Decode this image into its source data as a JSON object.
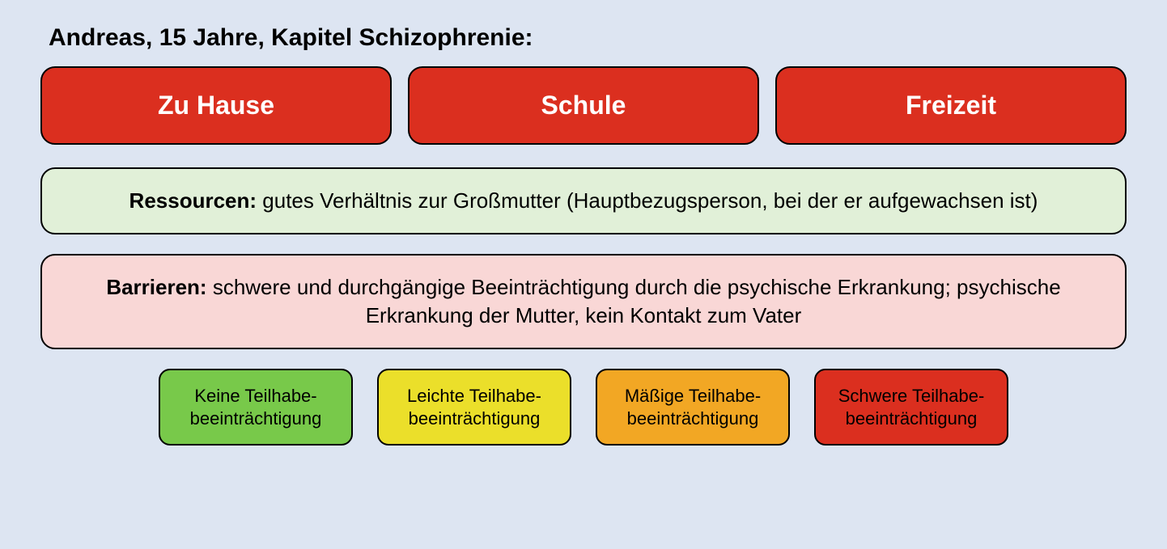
{
  "title": "Andreas, 15 Jahre, Kapitel Schizophrenie:",
  "colors": {
    "background": "#dde5f2",
    "context_fill": "#db2f1f",
    "context_text": "#ffffff",
    "resources_fill": "#e1f0d8",
    "barriers_fill": "#f9d7d6",
    "border": "#000000",
    "legend_none": "#78c94a",
    "legend_light": "#ebdf2a",
    "legend_moderate": "#f2a724",
    "legend_severe": "#db2f1f"
  },
  "contexts": [
    {
      "label": "Zu Hause"
    },
    {
      "label": "Schule"
    },
    {
      "label": "Freizeit"
    }
  ],
  "resources": {
    "label": "Ressourcen:",
    "text": " gutes Verhältnis zur Großmutter (Hauptbezugsperson, bei der er aufgewachsen ist)"
  },
  "barriers": {
    "label": "Barrieren:",
    "text": " schwere und durchgängige Beeinträchtigung durch die psychische Erkrankung; psychische Erkrankung der Mutter, kein Kontakt zum Vater"
  },
  "legend": [
    {
      "line1": "Keine Teilhabe-",
      "line2": "beeinträchtigung",
      "color_key": "legend_none"
    },
    {
      "line1": "Leichte Teilhabe-",
      "line2": "beeinträchtigung",
      "color_key": "legend_light"
    },
    {
      "line1": "Mäßige Teilhabe-",
      "line2": "beeinträchtigung",
      "color_key": "legend_moderate"
    },
    {
      "line1": "Schwere Teilhabe-",
      "line2": "beeinträchtigung",
      "color_key": "legend_severe"
    }
  ]
}
